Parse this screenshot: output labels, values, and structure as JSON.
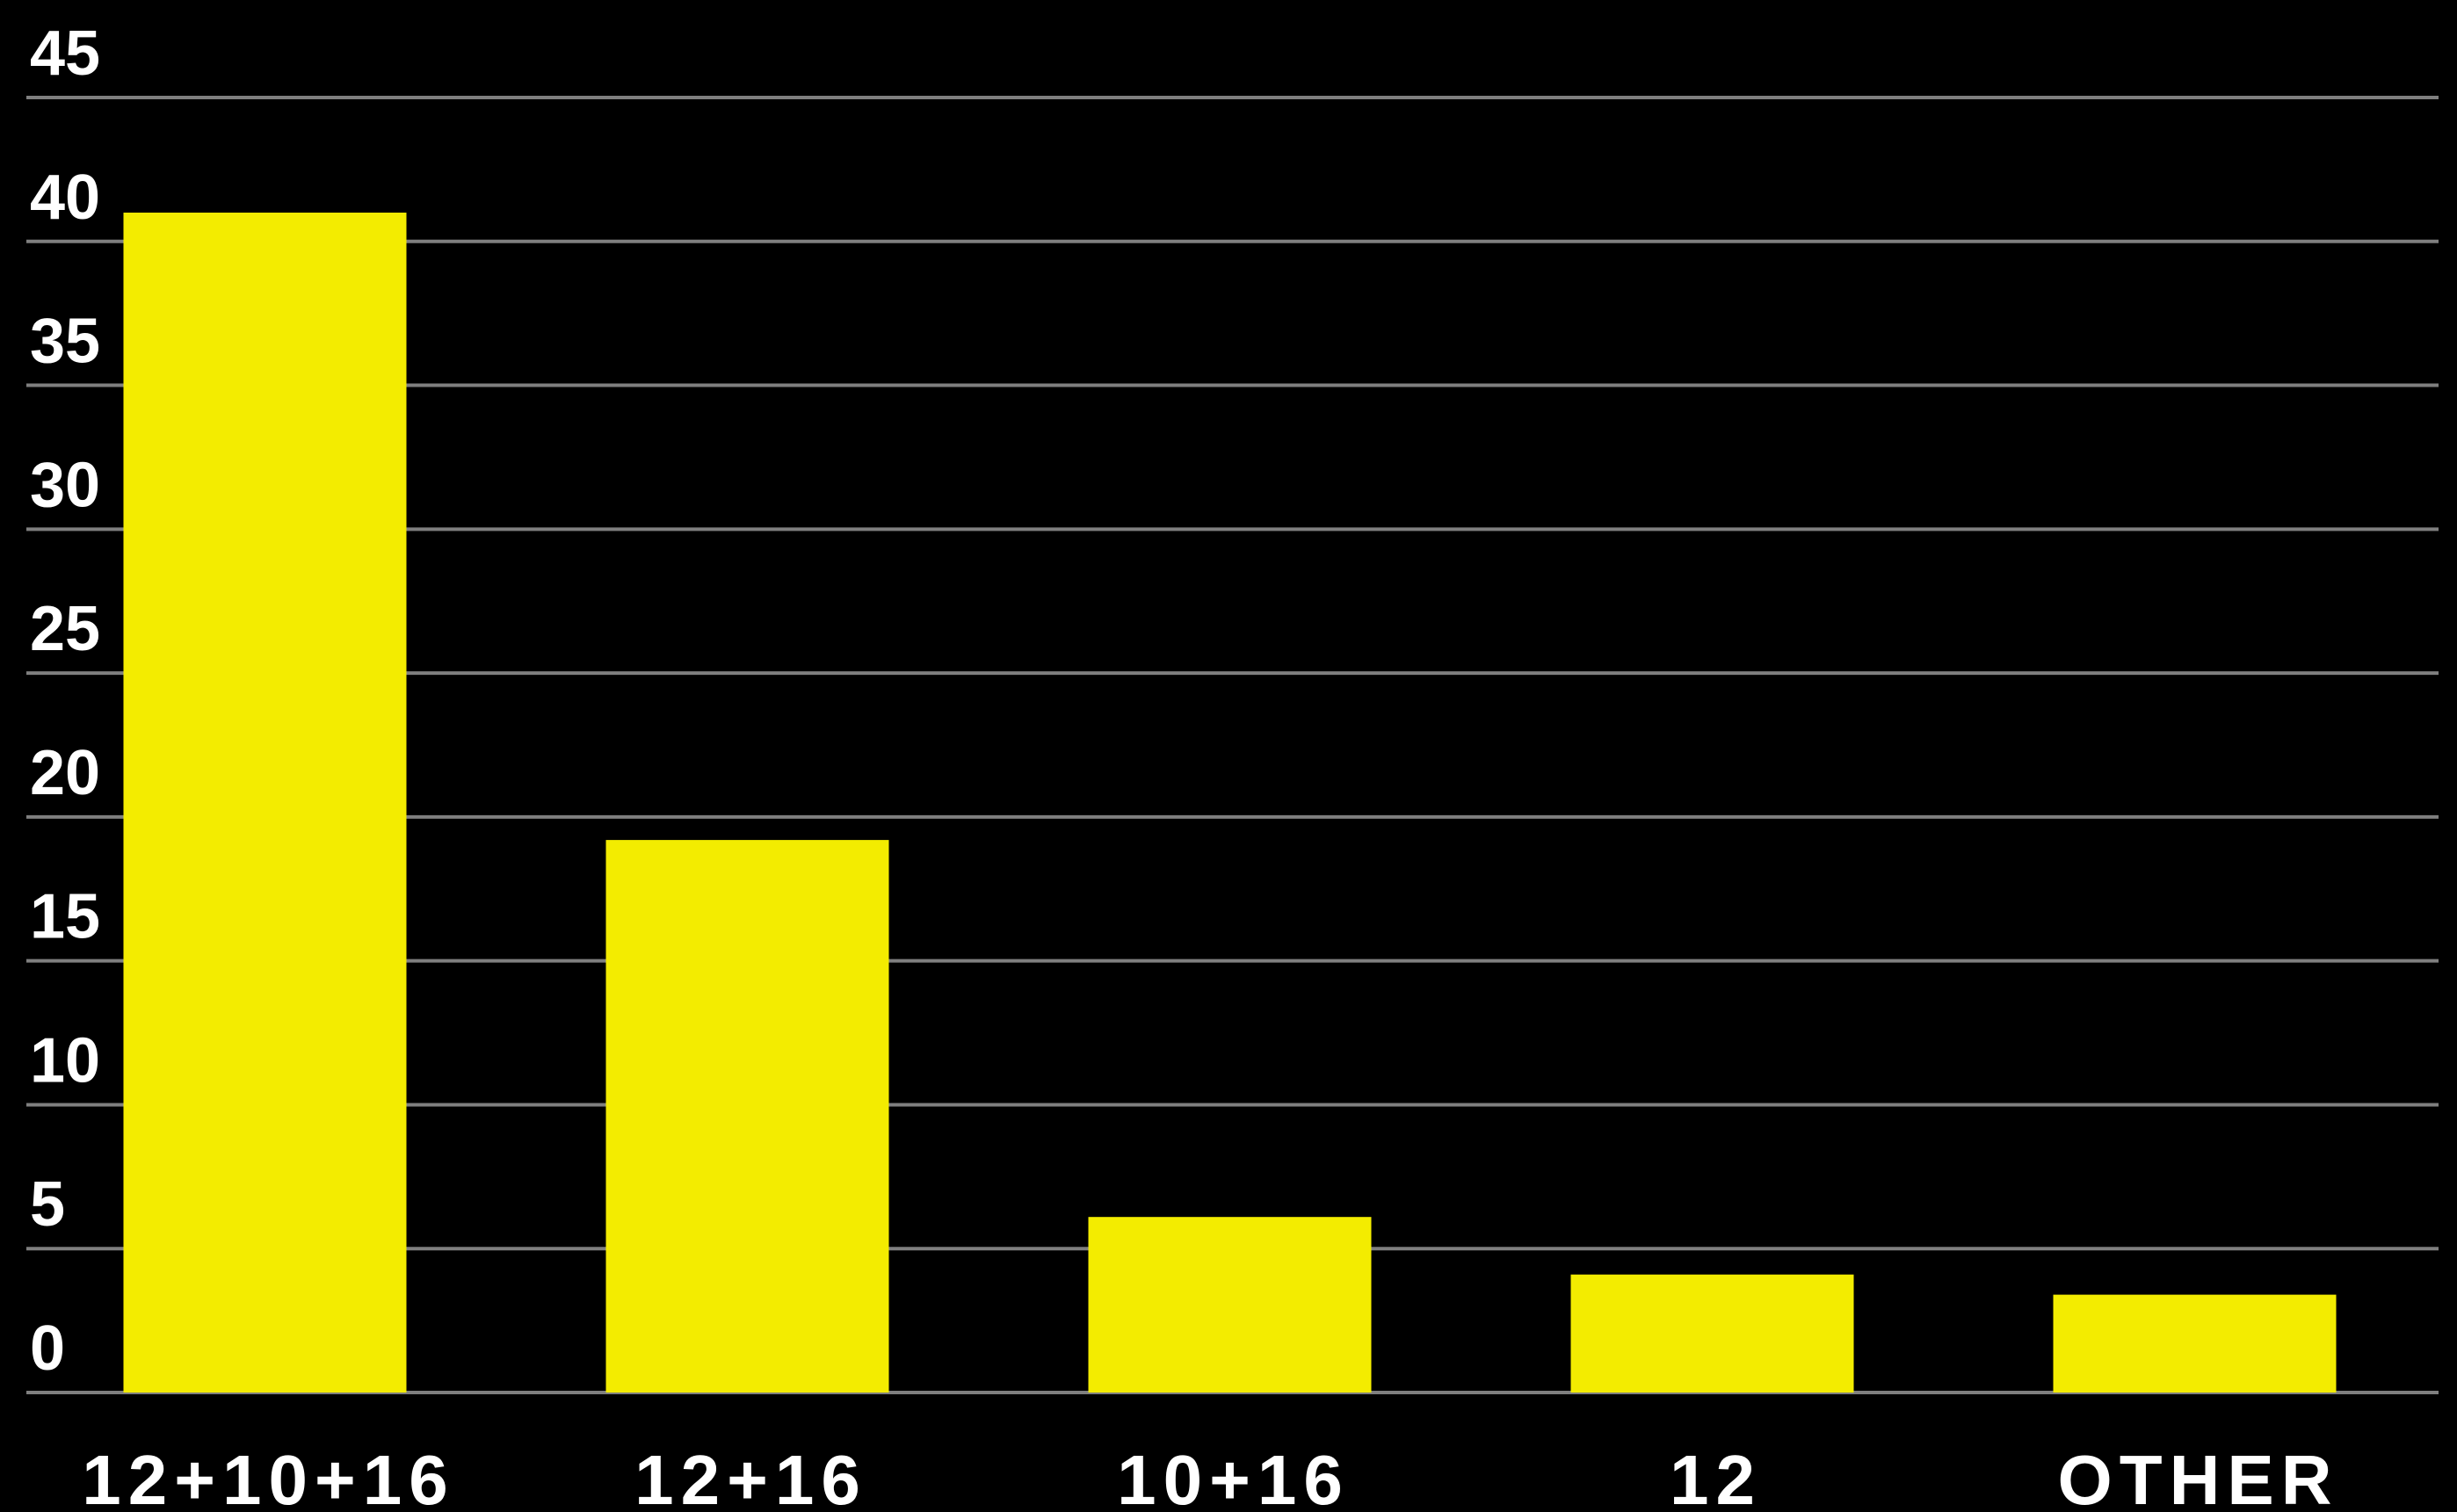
{
  "chart_data": {
    "type": "bar",
    "categories": [
      "12+10+16",
      "12+16",
      "10+16",
      "12",
      "OTHER"
    ],
    "values": [
      41,
      19.2,
      6.1,
      4.1,
      3.4
    ],
    "title": "",
    "xlabel": "",
    "ylabel": "",
    "ylim": [
      0,
      45
    ],
    "yticks": [
      "0",
      "5",
      "10",
      "15",
      "20",
      "25",
      "30",
      "35",
      "40",
      "45"
    ],
    "grid": true,
    "legend": "none",
    "colors": {
      "background": "#000000",
      "bar": "#f3ec00",
      "grid": "#7f7f7f",
      "text": "#ffffff"
    }
  }
}
